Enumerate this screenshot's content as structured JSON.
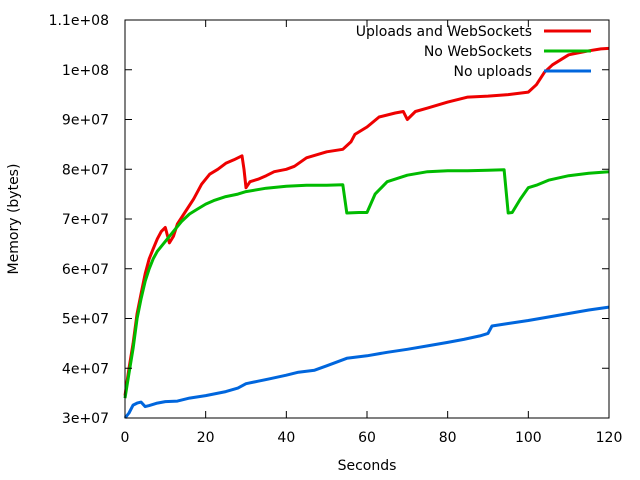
{
  "chart_data": {
    "type": "line",
    "title": "",
    "xlabel": "Seconds",
    "ylabel": "Memory (bytes)",
    "xlim": [
      0,
      120
    ],
    "ylim": [
      30000000,
      110000000
    ],
    "x_ticks": [
      0,
      20,
      40,
      60,
      80,
      100,
      120
    ],
    "x_tick_labels": [
      "0",
      "20",
      "40",
      "60",
      "80",
      "100",
      "120"
    ],
    "y_ticks": [
      30000000,
      40000000,
      50000000,
      60000000,
      70000000,
      80000000,
      90000000,
      100000000,
      110000000
    ],
    "y_tick_labels": [
      "3e+07",
      "4e+07",
      "5e+07",
      "6e+07",
      "7e+07",
      "8e+07",
      "9e+07",
      "1e+08",
      "1.1e+08"
    ],
    "grid": false,
    "legend_position": "top-right",
    "series": [
      {
        "name": "Uploads and WebSockets",
        "color": "#ee0000",
        "points": [
          [
            0,
            34500000
          ],
          [
            1,
            40000000
          ],
          [
            2,
            45000000
          ],
          [
            3,
            51000000
          ],
          [
            4,
            55000000
          ],
          [
            5,
            59000000
          ],
          [
            6,
            62000000
          ],
          [
            7,
            64000000
          ],
          [
            8,
            66000000
          ],
          [
            9,
            67500000
          ],
          [
            10,
            68300000
          ],
          [
            11,
            65200000
          ],
          [
            12,
            66500000
          ],
          [
            13,
            69000000
          ],
          [
            15,
            71500000
          ],
          [
            17,
            74000000
          ],
          [
            19,
            77000000
          ],
          [
            21,
            79000000
          ],
          [
            23,
            80000000
          ],
          [
            25,
            81200000
          ],
          [
            27,
            81900000
          ],
          [
            29,
            82700000
          ],
          [
            29.5,
            80000000
          ],
          [
            30,
            76300000
          ],
          [
            31,
            77500000
          ],
          [
            33,
            78000000
          ],
          [
            35,
            78700000
          ],
          [
            37,
            79500000
          ],
          [
            40,
            80000000
          ],
          [
            42,
            80600000
          ],
          [
            45,
            82300000
          ],
          [
            50,
            83500000
          ],
          [
            54,
            84000000
          ],
          [
            56,
            85500000
          ],
          [
            57,
            87000000
          ],
          [
            60,
            88500000
          ],
          [
            63,
            90500000
          ],
          [
            67,
            91300000
          ],
          [
            69,
            91600000
          ],
          [
            70,
            90000000
          ],
          [
            72,
            91600000
          ],
          [
            75,
            92300000
          ],
          [
            80,
            93500000
          ],
          [
            85,
            94500000
          ],
          [
            90,
            94700000
          ],
          [
            95,
            95000000
          ],
          [
            100,
            95500000
          ],
          [
            102,
            97000000
          ],
          [
            104,
            99500000
          ],
          [
            106,
            101000000
          ],
          [
            110,
            103000000
          ],
          [
            115,
            103800000
          ],
          [
            118,
            104200000
          ],
          [
            120,
            104300000
          ]
        ]
      },
      {
        "name": "No WebSockets",
        "color": "#00bb00",
        "points": [
          [
            0,
            34000000
          ],
          [
            1,
            39000000
          ],
          [
            2,
            44000000
          ],
          [
            3,
            50000000
          ],
          [
            4,
            54000000
          ],
          [
            5,
            57500000
          ],
          [
            6,
            60000000
          ],
          [
            7,
            62000000
          ],
          [
            8,
            63500000
          ],
          [
            10,
            65500000
          ],
          [
            12,
            67500000
          ],
          [
            14,
            69500000
          ],
          [
            16,
            71000000
          ],
          [
            18,
            72000000
          ],
          [
            20,
            73000000
          ],
          [
            22,
            73700000
          ],
          [
            25,
            74500000
          ],
          [
            28,
            75000000
          ],
          [
            30,
            75500000
          ],
          [
            35,
            76200000
          ],
          [
            40,
            76600000
          ],
          [
            45,
            76800000
          ],
          [
            50,
            76800000
          ],
          [
            54,
            76900000
          ],
          [
            55,
            71200000
          ],
          [
            58,
            71300000
          ],
          [
            60,
            71300000
          ],
          [
            62,
            75000000
          ],
          [
            65,
            77500000
          ],
          [
            70,
            78800000
          ],
          [
            75,
            79500000
          ],
          [
            80,
            79700000
          ],
          [
            85,
            79700000
          ],
          [
            90,
            79800000
          ],
          [
            94,
            79900000
          ],
          [
            95,
            71200000
          ],
          [
            96,
            71300000
          ],
          [
            98,
            74000000
          ],
          [
            100,
            76300000
          ],
          [
            102,
            76800000
          ],
          [
            105,
            77800000
          ],
          [
            110,
            78700000
          ],
          [
            115,
            79200000
          ],
          [
            120,
            79500000
          ]
        ]
      },
      {
        "name": "No uploads",
        "color": "#0066dd",
        "points": [
          [
            0,
            30000000
          ],
          [
            1,
            31000000
          ],
          [
            2,
            32600000
          ],
          [
            3,
            33000000
          ],
          [
            4,
            33200000
          ],
          [
            5,
            32300000
          ],
          [
            6,
            32500000
          ],
          [
            8,
            33000000
          ],
          [
            10,
            33300000
          ],
          [
            13,
            33400000
          ],
          [
            16,
            34000000
          ],
          [
            20,
            34500000
          ],
          [
            25,
            35300000
          ],
          [
            28,
            36000000
          ],
          [
            30,
            36900000
          ],
          [
            33,
            37400000
          ],
          [
            36,
            37900000
          ],
          [
            40,
            38600000
          ],
          [
            43,
            39200000
          ],
          [
            47,
            39600000
          ],
          [
            50,
            40500000
          ],
          [
            55,
            42000000
          ],
          [
            60,
            42500000
          ],
          [
            65,
            43200000
          ],
          [
            70,
            43800000
          ],
          [
            75,
            44500000
          ],
          [
            80,
            45200000
          ],
          [
            84,
            45800000
          ],
          [
            88,
            46500000
          ],
          [
            90,
            47000000
          ],
          [
            91,
            48500000
          ],
          [
            95,
            49000000
          ],
          [
            100,
            49600000
          ],
          [
            105,
            50300000
          ],
          [
            110,
            51000000
          ],
          [
            115,
            51700000
          ],
          [
            120,
            52300000
          ]
        ]
      }
    ]
  }
}
